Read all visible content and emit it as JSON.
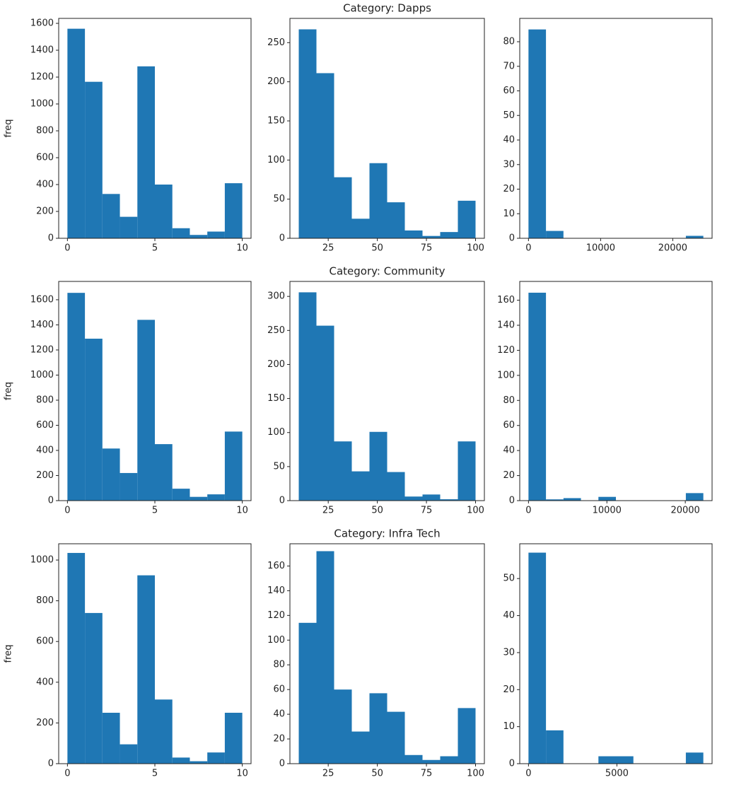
{
  "chart_data": [
    {
      "type": "histogram",
      "color": "#1f77b4",
      "y_label": "freq",
      "bins": [
        0,
        1,
        2,
        3,
        4,
        5,
        6,
        7,
        8,
        9,
        10
      ],
      "values": [
        1560,
        1165,
        330,
        160,
        1280,
        400,
        75,
        25,
        50,
        410
      ],
      "xlim": [
        -0.5,
        10.5
      ],
      "xticks": [
        0,
        5,
        10
      ],
      "ylim": [
        0,
        1637
      ],
      "yticks": [
        0,
        200,
        400,
        600,
        800,
        1000,
        1200,
        1400,
        1600
      ]
    },
    {
      "type": "histogram",
      "color": "#1f77b4",
      "title": "Category: Dapps",
      "bins": [
        10,
        19,
        28,
        37,
        46,
        55,
        64,
        73,
        82,
        91,
        100
      ],
      "values": [
        267,
        211,
        78,
        25,
        96,
        46,
        10,
        3,
        8,
        48
      ],
      "xlim": [
        5.5,
        104.5
      ],
      "xticks": [
        25,
        50,
        75,
        100
      ],
      "ylim": [
        0,
        281
      ],
      "yticks": [
        0,
        50,
        100,
        150,
        200,
        250
      ]
    },
    {
      "type": "histogram",
      "color": "#1f77b4",
      "bins": [
        0,
        2424,
        4848,
        7272,
        9696,
        12120,
        14544,
        16968,
        19392,
        21816,
        24240
      ],
      "values": [
        85,
        3,
        0,
        0,
        0,
        0,
        0,
        0,
        0,
        1
      ],
      "xlim": [
        -1212,
        25452
      ],
      "xticks": [
        0,
        10000,
        20000
      ],
      "ylim": [
        0,
        89.5
      ],
      "yticks": [
        0,
        10,
        20,
        30,
        40,
        50,
        60,
        70,
        80
      ]
    },
    {
      "type": "histogram",
      "color": "#1f77b4",
      "y_label": "freq",
      "bins": [
        0,
        1,
        2,
        3,
        4,
        5,
        6,
        7,
        8,
        9,
        10
      ],
      "values": [
        1655,
        1290,
        415,
        220,
        1440,
        450,
        95,
        30,
        50,
        550
      ],
      "xlim": [
        -0.5,
        10.5
      ],
      "xticks": [
        0,
        5,
        10
      ],
      "ylim": [
        0,
        1746
      ],
      "yticks": [
        0,
        200,
        400,
        600,
        800,
        1000,
        1200,
        1400,
        1600
      ]
    },
    {
      "type": "histogram",
      "color": "#1f77b4",
      "title": "Category: Community",
      "bins": [
        10,
        19,
        28,
        37,
        46,
        55,
        64,
        73,
        82,
        91,
        100
      ],
      "values": [
        306,
        257,
        87,
        43,
        101,
        42,
        6,
        9,
        2,
        87
      ],
      "xlim": [
        5.5,
        104.5
      ],
      "xticks": [
        25,
        50,
        75,
        100
      ],
      "ylim": [
        0,
        322
      ],
      "yticks": [
        0,
        50,
        100,
        150,
        200,
        250,
        300
      ]
    },
    {
      "type": "histogram",
      "color": "#1f77b4",
      "bins": [
        0,
        2230,
        4460,
        6690,
        8920,
        11150,
        13380,
        15610,
        17840,
        20070,
        22300
      ],
      "values": [
        166,
        1,
        2,
        0,
        3,
        0,
        0,
        0,
        0,
        6
      ],
      "xlim": [
        -1115,
        23415
      ],
      "xticks": [
        0,
        10000,
        20000
      ],
      "ylim": [
        0,
        175
      ],
      "yticks": [
        0,
        20,
        40,
        60,
        80,
        100,
        120,
        140,
        160
      ]
    },
    {
      "type": "histogram",
      "color": "#1f77b4",
      "y_label": "freq",
      "bins": [
        0,
        1,
        2,
        3,
        4,
        5,
        6,
        7,
        8,
        9,
        10
      ],
      "values": [
        1035,
        740,
        250,
        95,
        925,
        315,
        30,
        12,
        55,
        250
      ],
      "xlim": [
        -0.5,
        10.5
      ],
      "xticks": [
        0,
        5,
        10
      ],
      "ylim": [
        0,
        1080
      ],
      "yticks": [
        0,
        200,
        400,
        600,
        800,
        1000
      ]
    },
    {
      "type": "histogram",
      "color": "#1f77b4",
      "title": "Category: Infra Tech",
      "bins": [
        10,
        19,
        28,
        37,
        46,
        55,
        64,
        73,
        82,
        91,
        100
      ],
      "values": [
        114,
        172,
        60,
        26,
        57,
        42,
        7,
        3,
        6,
        45
      ],
      "xlim": [
        5.5,
        104.5
      ],
      "xticks": [
        25,
        50,
        75,
        100
      ],
      "ylim": [
        0,
        178
      ],
      "yticks": [
        0,
        20,
        40,
        60,
        80,
        100,
        120,
        140,
        160
      ]
    },
    {
      "type": "histogram",
      "color": "#1f77b4",
      "bins": [
        0,
        989,
        1978,
        2967,
        3956,
        4945,
        5934,
        6923,
        7912,
        8901,
        9890
      ],
      "values": [
        57,
        9,
        0,
        0,
        2,
        2,
        0,
        0,
        0,
        3
      ],
      "xlim": [
        -494.5,
        10384.5
      ],
      "xticks": [
        0,
        5000
      ],
      "ylim": [
        0,
        59.4
      ],
      "yticks": [
        0,
        10,
        20,
        30,
        40,
        50
      ]
    }
  ]
}
